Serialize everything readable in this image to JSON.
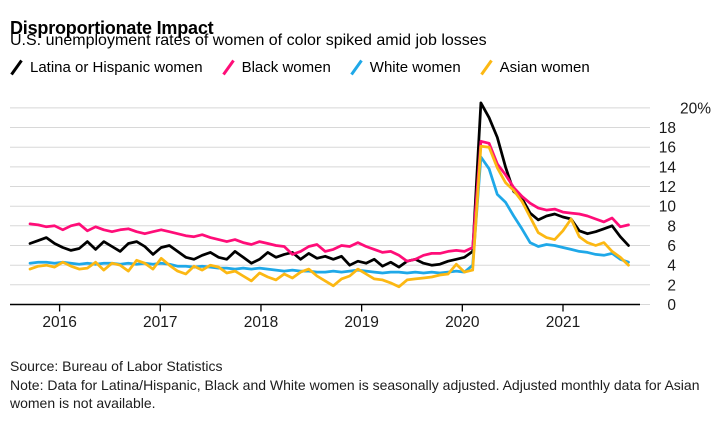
{
  "header": {
    "title": "Disproportionate Impact",
    "subtitle": "U.S. unemployment rates of women of color spiked amid job losses"
  },
  "legend": [
    {
      "label": "Latina or Hispanic women",
      "color": "#000000"
    },
    {
      "label": "Black women",
      "color": "#ff0d78"
    },
    {
      "label": "White women",
      "color": "#1fa8e8"
    },
    {
      "label": "Asian women",
      "color": "#fcb813"
    }
  ],
  "chart_data": {
    "type": "line",
    "title": "Disproportionate Impact",
    "subtitle": "U.S. unemployment rates of women of color spiked amid job losses",
    "frequency": "monthly",
    "x_domain_years": [
      2015.7,
      2021.65
    ],
    "x_tick_years": [
      2016,
      2017,
      2018,
      2019,
      2020,
      2021
    ],
    "x_tick_labels": [
      "2016",
      "2017",
      "2018",
      "2019",
      "2020",
      "2021"
    ],
    "ylim": [
      0,
      20
    ],
    "y_grid_step": 2,
    "y_tick_labels": [
      "20%",
      "18",
      "16",
      "14",
      "12",
      "10",
      "8",
      "6",
      "4",
      "2",
      "0"
    ],
    "grid": true,
    "legend_position": "top",
    "axis_side": "right",
    "series": [
      {
        "name": "Latina or Hispanic women",
        "color": "#000000",
        "values": [
          6.2,
          6.5,
          6.8,
          6.2,
          5.8,
          5.5,
          5.7,
          6.4,
          5.6,
          6.4,
          5.9,
          5.4,
          6.2,
          6.4,
          5.9,
          5.1,
          5.8,
          6.0,
          5.4,
          4.8,
          4.6,
          5.0,
          5.3,
          4.8,
          4.6,
          5.4,
          4.8,
          4.2,
          4.6,
          5.3,
          4.8,
          5.1,
          5.3,
          4.6,
          5.2,
          4.7,
          4.9,
          4.6,
          4.9,
          4.0,
          4.4,
          4.2,
          4.6,
          3.9,
          4.3,
          3.8,
          4.4,
          4.6,
          4.2,
          4.0,
          4.1,
          4.4,
          4.6,
          4.8,
          5.4,
          20.5,
          19.0,
          17.0,
          14.0,
          11.5,
          10.8,
          9.3,
          8.6,
          9.0,
          9.2,
          8.9,
          8.7,
          7.5,
          7.2,
          7.4,
          7.7,
          8.0,
          6.9,
          6.0
        ]
      },
      {
        "name": "Black women",
        "color": "#ff0d78",
        "values": [
          8.2,
          8.1,
          7.9,
          8.0,
          7.6,
          8.0,
          8.2,
          7.5,
          7.9,
          7.6,
          7.4,
          7.6,
          7.7,
          7.4,
          7.2,
          7.4,
          7.6,
          7.4,
          7.2,
          7.0,
          6.9,
          7.1,
          6.8,
          6.6,
          6.4,
          6.6,
          6.3,
          6.1,
          6.4,
          6.2,
          6.0,
          5.9,
          5.1,
          5.4,
          5.9,
          6.1,
          5.4,
          5.6,
          6.0,
          5.9,
          6.3,
          5.9,
          5.6,
          5.3,
          5.4,
          5.0,
          4.4,
          4.6,
          5.0,
          5.2,
          5.2,
          5.4,
          5.5,
          5.4,
          5.8,
          16.6,
          16.4,
          14.3,
          13.2,
          11.9,
          11.0,
          10.3,
          9.8,
          9.6,
          9.7,
          9.4,
          9.3,
          9.2,
          9.0,
          8.7,
          8.4,
          8.8,
          7.9,
          8.1
        ]
      },
      {
        "name": "White women",
        "color": "#1fa8e8",
        "values": [
          4.2,
          4.3,
          4.3,
          4.2,
          4.3,
          4.2,
          4.1,
          4.2,
          4.1,
          4.2,
          4.2,
          4.1,
          4.2,
          4.1,
          4.2,
          4.1,
          4.2,
          4.1,
          3.9,
          3.9,
          3.8,
          3.9,
          3.8,
          3.7,
          3.7,
          3.6,
          3.7,
          3.6,
          3.7,
          3.6,
          3.5,
          3.4,
          3.5,
          3.4,
          3.4,
          3.3,
          3.3,
          3.4,
          3.3,
          3.4,
          3.5,
          3.4,
          3.3,
          3.2,
          3.3,
          3.3,
          3.2,
          3.3,
          3.2,
          3.3,
          3.2,
          3.3,
          3.4,
          3.3,
          4.0,
          15.0,
          13.8,
          11.2,
          10.4,
          9.0,
          7.7,
          6.3,
          5.9,
          6.1,
          6.0,
          5.8,
          5.6,
          5.4,
          5.3,
          5.1,
          5.0,
          5.2,
          4.6,
          4.3
        ]
      },
      {
        "name": "Asian women",
        "color": "#fcb813",
        "values": [
          3.6,
          3.9,
          4.0,
          3.8,
          4.3,
          3.9,
          3.6,
          3.7,
          4.3,
          3.5,
          4.2,
          4.0,
          3.4,
          4.5,
          4.2,
          3.6,
          4.7,
          4.0,
          3.4,
          3.1,
          3.9,
          3.5,
          4.0,
          3.8,
          3.2,
          3.4,
          2.9,
          2.4,
          3.2,
          2.8,
          2.5,
          3.1,
          2.7,
          3.3,
          3.6,
          2.9,
          2.4,
          1.9,
          2.6,
          2.9,
          3.6,
          3.1,
          2.6,
          2.5,
          2.2,
          1.8,
          2.5,
          2.6,
          2.7,
          2.8,
          3.0,
          3.1,
          4.1,
          3.3,
          3.5,
          16.1,
          16.0,
          13.9,
          12.4,
          11.6,
          10.5,
          8.9,
          7.3,
          6.8,
          6.6,
          7.5,
          8.7,
          6.9,
          6.3,
          6.0,
          6.3,
          5.4,
          4.8,
          4.0
        ]
      }
    ]
  },
  "footer": {
    "source": "Source: Bureau of Labor Statistics",
    "note": "Note: Data for Latina/Hispanic, Black and White women is seasonally adjusted. Adjusted monthly data for Asian women is not available."
  }
}
